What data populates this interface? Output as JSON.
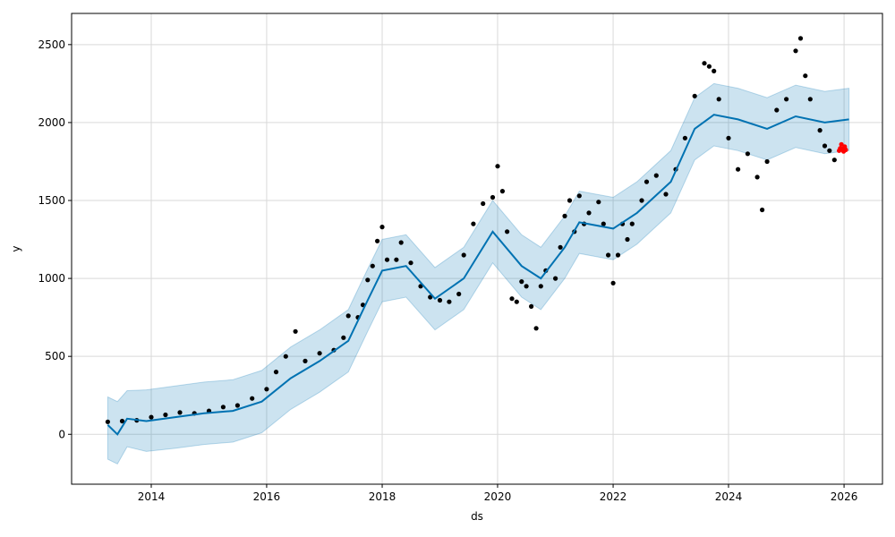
{
  "chart_data": {
    "type": "scatter",
    "title": "",
    "xlabel": "ds",
    "ylabel": "y",
    "xlim": [
      "2012-08-15",
      "2026-09-01"
    ],
    "ylim": [
      -320,
      2700
    ],
    "grid": true,
    "x_ticks": [
      {
        "value": "2014-01-01",
        "label": "2014"
      },
      {
        "value": "2016-01-01",
        "label": "2016"
      },
      {
        "value": "2018-01-01",
        "label": "2018"
      },
      {
        "value": "2020-01-01",
        "label": "2020"
      },
      {
        "value": "2022-01-01",
        "label": "2022"
      },
      {
        "value": "2024-01-01",
        "label": "2024"
      },
      {
        "value": "2026-01-01",
        "label": "2026"
      }
    ],
    "y_ticks": [
      {
        "value": 0,
        "label": "0"
      },
      {
        "value": 500,
        "label": "500"
      },
      {
        "value": 1000,
        "label": "1000"
      },
      {
        "value": 1500,
        "label": "1500"
      },
      {
        "value": 2000,
        "label": "2000"
      },
      {
        "value": 2500,
        "label": "2500"
      }
    ],
    "colors": {
      "observed": "#000000",
      "forecast": "#0072B2",
      "uncertainty": "#0072B2",
      "holdout": "#ff0000",
      "grid": "#d9d9d9"
    },
    "series": [
      {
        "role": "observed",
        "points": [
          [
            "2013-04-01",
            80
          ],
          [
            "2013-07-01",
            85
          ],
          [
            "2013-10-01",
            90
          ],
          [
            "2014-01-01",
            110
          ],
          [
            "2014-04-01",
            125
          ],
          [
            "2014-07-01",
            140
          ],
          [
            "2014-10-01",
            135
          ],
          [
            "2015-01-01",
            150
          ],
          [
            "2015-04-01",
            175
          ],
          [
            "2015-07-01",
            185
          ],
          [
            "2015-10-01",
            230
          ],
          [
            "2016-01-01",
            290
          ],
          [
            "2016-03-01",
            400
          ],
          [
            "2016-05-01",
            500
          ],
          [
            "2016-07-01",
            660
          ],
          [
            "2016-09-01",
            470
          ],
          [
            "2016-12-01",
            520
          ],
          [
            "2017-03-01",
            540
          ],
          [
            "2017-05-01",
            620
          ],
          [
            "2017-06-01",
            760
          ],
          [
            "2017-08-01",
            750
          ],
          [
            "2017-09-01",
            830
          ],
          [
            "2017-10-01",
            990
          ],
          [
            "2017-11-01",
            1080
          ],
          [
            "2017-12-01",
            1240
          ],
          [
            "2018-01-01",
            1330
          ],
          [
            "2018-02-01",
            1120
          ],
          [
            "2018-04-01",
            1120
          ],
          [
            "2018-05-01",
            1230
          ],
          [
            "2018-07-01",
            1100
          ],
          [
            "2018-09-01",
            950
          ],
          [
            "2018-11-01",
            880
          ],
          [
            "2019-01-01",
            860
          ],
          [
            "2019-03-01",
            850
          ],
          [
            "2019-05-01",
            900
          ],
          [
            "2019-06-01",
            1150
          ],
          [
            "2019-08-01",
            1350
          ],
          [
            "2019-10-01",
            1480
          ],
          [
            "2019-12-01",
            1520
          ],
          [
            "2020-01-01",
            1720
          ],
          [
            "2020-02-01",
            1560
          ],
          [
            "2020-03-01",
            1300
          ],
          [
            "2020-04-01",
            870
          ],
          [
            "2020-05-01",
            850
          ],
          [
            "2020-06-01",
            980
          ],
          [
            "2020-07-01",
            950
          ],
          [
            "2020-08-01",
            820
          ],
          [
            "2020-09-01",
            680
          ],
          [
            "2020-10-01",
            950
          ],
          [
            "2020-11-01",
            1050
          ],
          [
            "2021-01-01",
            1000
          ],
          [
            "2021-02-01",
            1200
          ],
          [
            "2021-03-01",
            1400
          ],
          [
            "2021-04-01",
            1500
          ],
          [
            "2021-05-01",
            1300
          ],
          [
            "2021-06-01",
            1530
          ],
          [
            "2021-07-01",
            1350
          ],
          [
            "2021-08-01",
            1420
          ],
          [
            "2021-10-01",
            1490
          ],
          [
            "2021-11-01",
            1350
          ],
          [
            "2021-12-01",
            1150
          ],
          [
            "2022-01-01",
            970
          ],
          [
            "2022-02-01",
            1150
          ],
          [
            "2022-03-01",
            1350
          ],
          [
            "2022-04-01",
            1250
          ],
          [
            "2022-05-01",
            1350
          ],
          [
            "2022-07-01",
            1500
          ],
          [
            "2022-08-01",
            1620
          ],
          [
            "2022-10-01",
            1660
          ],
          [
            "2022-12-01",
            1540
          ],
          [
            "2023-02-01",
            1700
          ],
          [
            "2023-04-01",
            1900
          ],
          [
            "2023-06-01",
            2170
          ],
          [
            "2023-08-01",
            2380
          ],
          [
            "2023-09-01",
            2360
          ],
          [
            "2023-10-01",
            2330
          ],
          [
            "2023-11-01",
            2150
          ],
          [
            "2024-01-01",
            1900
          ],
          [
            "2024-03-01",
            1700
          ],
          [
            "2024-05-01",
            1800
          ],
          [
            "2024-07-01",
            1650
          ],
          [
            "2024-08-01",
            1440
          ],
          [
            "2024-09-01",
            1750
          ],
          [
            "2024-11-01",
            2080
          ],
          [
            "2025-01-01",
            2150
          ],
          [
            "2025-03-01",
            2460
          ],
          [
            "2025-04-01",
            2540
          ],
          [
            "2025-05-01",
            2300
          ],
          [
            "2025-06-01",
            2150
          ],
          [
            "2025-08-01",
            1950
          ],
          [
            "2025-09-01",
            1850
          ],
          [
            "2025-10-01",
            1820
          ],
          [
            "2025-11-01",
            1760
          ]
        ]
      },
      {
        "role": "holdout",
        "points": [
          [
            "2025-12-01",
            1820
          ],
          [
            "2025-12-08",
            1835
          ],
          [
            "2025-12-15",
            1860
          ],
          [
            "2025-12-22",
            1830
          ],
          [
            "2025-12-29",
            1815
          ],
          [
            "2026-01-05",
            1845
          ],
          [
            "2026-01-12",
            1825
          ]
        ]
      },
      {
        "role": "forecast",
        "points": [
          [
            "2013-04-01",
            60
          ],
          [
            "2013-06-01",
            0
          ],
          [
            "2013-08-01",
            100
          ],
          [
            "2013-12-01",
            85
          ],
          [
            "2014-06-01",
            110
          ],
          [
            "2014-12-01",
            135
          ],
          [
            "2015-06-01",
            150
          ],
          [
            "2015-12-01",
            210
          ],
          [
            "2016-06-01",
            360
          ],
          [
            "2016-12-01",
            470
          ],
          [
            "2017-06-01",
            600
          ],
          [
            "2017-10-01",
            860
          ],
          [
            "2018-01-01",
            1050
          ],
          [
            "2018-06-01",
            1080
          ],
          [
            "2018-12-01",
            870
          ],
          [
            "2019-06-01",
            1000
          ],
          [
            "2019-12-01",
            1300
          ],
          [
            "2020-06-01",
            1080
          ],
          [
            "2020-10-01",
            1000
          ],
          [
            "2021-03-01",
            1200
          ],
          [
            "2021-06-01",
            1360
          ],
          [
            "2022-01-01",
            1320
          ],
          [
            "2022-06-01",
            1420
          ],
          [
            "2023-01-01",
            1620
          ],
          [
            "2023-06-01",
            1960
          ],
          [
            "2023-10-01",
            2050
          ],
          [
            "2024-03-01",
            2020
          ],
          [
            "2024-09-01",
            1960
          ],
          [
            "2025-03-01",
            2040
          ],
          [
            "2025-09-01",
            2000
          ],
          [
            "2026-02-01",
            2020
          ]
        ],
        "lower": [
          -160,
          -190,
          -80,
          -110,
          -90,
          -65,
          -50,
          10,
          160,
          270,
          400,
          660,
          850,
          880,
          670,
          800,
          1100,
          880,
          800,
          1000,
          1160,
          1120,
          1220,
          1420,
          1760,
          1850,
          1820,
          1760,
          1840,
          1800,
          1820
        ],
        "upper": [
          240,
          210,
          280,
          285,
          310,
          335,
          350,
          410,
          560,
          670,
          800,
          1060,
          1250,
          1280,
          1070,
          1200,
          1500,
          1280,
          1200,
          1400,
          1560,
          1520,
          1620,
          1820,
          2160,
          2250,
          2220,
          2160,
          2240,
          2200,
          2220
        ]
      }
    ]
  }
}
